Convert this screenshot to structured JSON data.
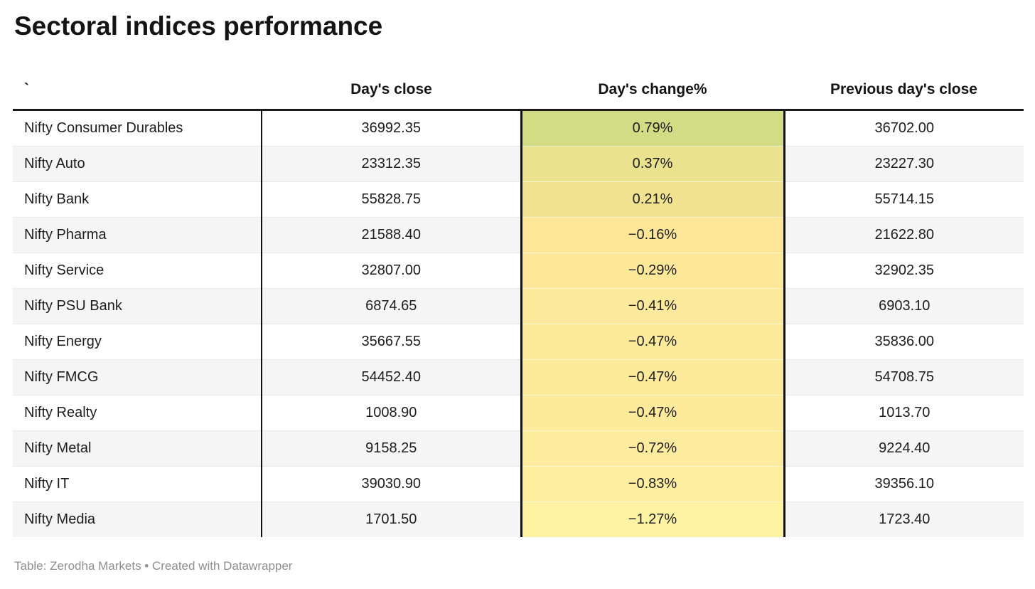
{
  "title": "Sectoral indices performance",
  "footer": "Table: Zerodha Markets • Created with Datawrapper",
  "colors": {
    "header_rule": "#1a1a1a",
    "row_alt_bg": "#f5f5f5",
    "row_separator": "#e8e8e8",
    "column_divider": "#111111",
    "footer_text": "#8e8e8e"
  },
  "table": {
    "columns": [
      {
        "label": "`",
        "align": "left"
      },
      {
        "label": "Day's close",
        "align": "center"
      },
      {
        "label": "Day's change%",
        "align": "center"
      },
      {
        "label": "Previous day's close",
        "align": "center"
      }
    ],
    "rows": [
      {
        "name": "Nifty Consumer Durables",
        "close": "36992.35",
        "change": "0.79%",
        "change_bg": "#d2dc85",
        "prev": "36702.00"
      },
      {
        "name": "Nifty Auto",
        "close": "23312.35",
        "change": "0.37%",
        "change_bg": "#eae28e",
        "prev": "23227.30"
      },
      {
        "name": "Nifty Bank",
        "close": "55828.75",
        "change": "0.21%",
        "change_bg": "#f1e292",
        "prev": "55714.15"
      },
      {
        "name": "Nifty Pharma",
        "close": "21588.40",
        "change": "−0.16%",
        "change_bg": "#fee699",
        "prev": "21622.80"
      },
      {
        "name": "Nifty Service",
        "close": "32807.00",
        "change": "−0.29%",
        "change_bg": "#fde89a",
        "prev": "32902.35"
      },
      {
        "name": "Nifty PSU Bank",
        "close": "6874.65",
        "change": "−0.41%",
        "change_bg": "#fde99b",
        "prev": "6903.10"
      },
      {
        "name": "Nifty Energy",
        "close": "35667.55",
        "change": "−0.47%",
        "change_bg": "#fdea9b",
        "prev": "35836.00"
      },
      {
        "name": "Nifty FMCG",
        "close": "54452.40",
        "change": "−0.47%",
        "change_bg": "#fdea9b",
        "prev": "54708.75"
      },
      {
        "name": "Nifty Realty",
        "close": "1008.90",
        "change": "−0.47%",
        "change_bg": "#fdea9b",
        "prev": "1013.70"
      },
      {
        "name": "Nifty Metal",
        "close": "9158.25",
        "change": "−0.72%",
        "change_bg": "#fdec9d",
        "prev": "9224.40"
      },
      {
        "name": "Nifty IT",
        "close": "39030.90",
        "change": "−0.83%",
        "change_bg": "#feee9f",
        "prev": "39356.10"
      },
      {
        "name": "Nifty Media",
        "close": "1701.50",
        "change": "−1.27%",
        "change_bg": "#fef3a3",
        "prev": "1723.40"
      }
    ]
  },
  "chart_data": {
    "type": "table",
    "title": "Sectoral indices performance",
    "columns": [
      "`",
      "Day's close",
      "Day's change%",
      "Previous day's close"
    ],
    "rows": [
      [
        "Nifty Consumer Durables",
        36992.35,
        0.79,
        36702.0
      ],
      [
        "Nifty Auto",
        23312.35,
        0.37,
        23227.3
      ],
      [
        "Nifty Bank",
        55828.75,
        0.21,
        55714.15
      ],
      [
        "Nifty Pharma",
        21588.4,
        -0.16,
        21622.8
      ],
      [
        "Nifty Service",
        32807.0,
        -0.29,
        32902.35
      ],
      [
        "Nifty PSU Bank",
        6874.65,
        -0.41,
        6903.1
      ],
      [
        "Nifty Energy",
        35667.55,
        -0.47,
        35836.0
      ],
      [
        "Nifty FMCG",
        54452.4,
        -0.47,
        54708.75
      ],
      [
        "Nifty Realty",
        1008.9,
        -0.47,
        1013.7
      ],
      [
        "Nifty Metal",
        9158.25,
        -0.72,
        9224.4
      ],
      [
        "Nifty IT",
        39030.9,
        -0.83,
        39356.1
      ],
      [
        "Nifty Media",
        1701.5,
        -1.27,
        1723.4
      ]
    ],
    "notes": "Day's change% column shaded on a green-to-yellow scale (highest value greenest, lowest value palest yellow)",
    "source": "Table: Zerodha Markets • Created with Datawrapper"
  }
}
